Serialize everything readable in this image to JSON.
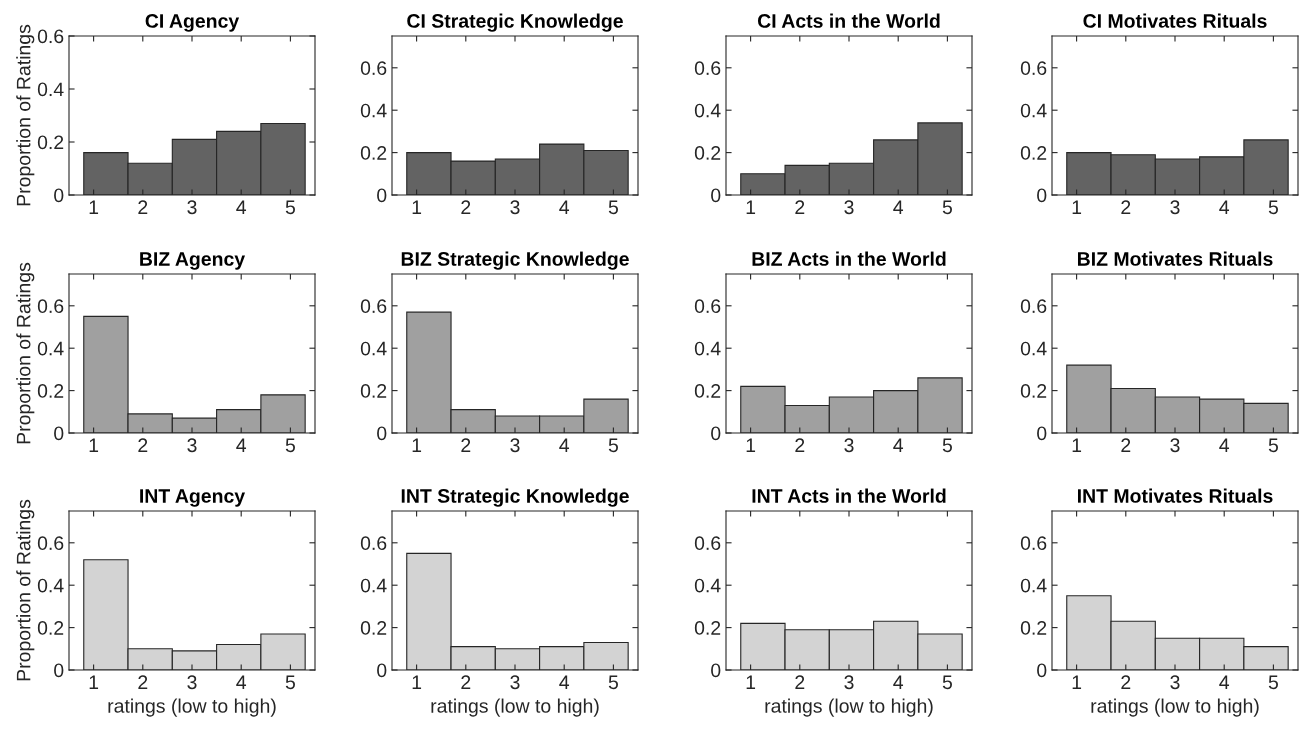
{
  "chart_data": [
    {
      "type": "histogram",
      "title": "CI Agency",
      "ylabel": "Proportion of Ratings",
      "bins": [
        0.8,
        1.7,
        2.6,
        3.5,
        4.4,
        5.3
      ],
      "values": [
        0.16,
        0.12,
        0.21,
        0.24,
        0.27
      ],
      "color": "#636363",
      "xlim": [
        0.5,
        5.5
      ],
      "xticks": [
        1,
        2,
        3,
        4,
        5
      ],
      "ylim": [
        0,
        0.6
      ],
      "yticks": [
        0,
        0.2,
        0.4,
        0.6
      ],
      "grid": false
    },
    {
      "type": "histogram",
      "title": "CI Strategic Knowledge",
      "bins": [
        0.8,
        1.7,
        2.6,
        3.5,
        4.4,
        5.3
      ],
      "values": [
        0.2,
        0.16,
        0.17,
        0.24,
        0.21
      ],
      "color": "#636363",
      "xlim": [
        0.5,
        5.5
      ],
      "xticks": [
        1,
        2,
        3,
        4,
        5
      ],
      "ylim": [
        0,
        0.75
      ],
      "yticks": [
        0,
        0.2,
        0.4,
        0.6
      ],
      "grid": false
    },
    {
      "type": "histogram",
      "title": "CI Acts in the World",
      "bins": [
        0.8,
        1.7,
        2.6,
        3.5,
        4.4,
        5.3
      ],
      "values": [
        0.1,
        0.14,
        0.15,
        0.26,
        0.34
      ],
      "color": "#636363",
      "xlim": [
        0.5,
        5.5
      ],
      "xticks": [
        1,
        2,
        3,
        4,
        5
      ],
      "ylim": [
        0,
        0.75
      ],
      "yticks": [
        0,
        0.2,
        0.4,
        0.6
      ],
      "grid": false
    },
    {
      "type": "histogram",
      "title": "CI Motivates Rituals",
      "bins": [
        0.8,
        1.7,
        2.6,
        3.5,
        4.4,
        5.3
      ],
      "values": [
        0.2,
        0.19,
        0.17,
        0.18,
        0.26
      ],
      "color": "#636363",
      "xlim": [
        0.5,
        5.5
      ],
      "xticks": [
        1,
        2,
        3,
        4,
        5
      ],
      "ylim": [
        0,
        0.75
      ],
      "yticks": [
        0,
        0.2,
        0.4,
        0.6
      ],
      "grid": false
    },
    {
      "type": "histogram",
      "title": "BIZ Agency",
      "ylabel": "Proportion of Ratings",
      "bins": [
        0.8,
        1.7,
        2.6,
        3.5,
        4.4,
        5.3
      ],
      "values": [
        0.55,
        0.09,
        0.07,
        0.11,
        0.18
      ],
      "color": "#a0a0a0",
      "xlim": [
        0.5,
        5.5
      ],
      "xticks": [
        1,
        2,
        3,
        4,
        5
      ],
      "ylim": [
        0,
        0.75
      ],
      "yticks": [
        0,
        0.2,
        0.4,
        0.6
      ],
      "grid": false
    },
    {
      "type": "histogram",
      "title": "BIZ Strategic Knowledge",
      "bins": [
        0.8,
        1.7,
        2.6,
        3.5,
        4.4,
        5.3
      ],
      "values": [
        0.57,
        0.11,
        0.08,
        0.08,
        0.16
      ],
      "color": "#a0a0a0",
      "xlim": [
        0.5,
        5.5
      ],
      "xticks": [
        1,
        2,
        3,
        4,
        5
      ],
      "ylim": [
        0,
        0.75
      ],
      "yticks": [
        0,
        0.2,
        0.4,
        0.6
      ],
      "grid": false
    },
    {
      "type": "histogram",
      "title": "BIZ Acts in the World",
      "bins": [
        0.8,
        1.7,
        2.6,
        3.5,
        4.4,
        5.3
      ],
      "values": [
        0.22,
        0.13,
        0.17,
        0.2,
        0.26
      ],
      "color": "#a0a0a0",
      "xlim": [
        0.5,
        5.5
      ],
      "xticks": [
        1,
        2,
        3,
        4,
        5
      ],
      "ylim": [
        0,
        0.75
      ],
      "yticks": [
        0,
        0.2,
        0.4,
        0.6
      ],
      "grid": false
    },
    {
      "type": "histogram",
      "title": "BIZ Motivates Rituals",
      "bins": [
        0.8,
        1.7,
        2.6,
        3.5,
        4.4,
        5.3
      ],
      "values": [
        0.32,
        0.21,
        0.17,
        0.16,
        0.14
      ],
      "color": "#a0a0a0",
      "xlim": [
        0.5,
        5.5
      ],
      "xticks": [
        1,
        2,
        3,
        4,
        5
      ],
      "ylim": [
        0,
        0.75
      ],
      "yticks": [
        0,
        0.2,
        0.4,
        0.6
      ],
      "grid": false
    },
    {
      "type": "histogram",
      "title": "INT Agency",
      "ylabel": "Proportion of Ratings",
      "xlabel": "ratings (low to high)",
      "bins": [
        0.8,
        1.7,
        2.6,
        3.5,
        4.4,
        5.3
      ],
      "values": [
        0.52,
        0.1,
        0.09,
        0.12,
        0.17
      ],
      "color": "#d3d3d3",
      "xlim": [
        0.5,
        5.5
      ],
      "xticks": [
        1,
        2,
        3,
        4,
        5
      ],
      "ylim": [
        0,
        0.75
      ],
      "yticks": [
        0,
        0.2,
        0.4,
        0.6
      ],
      "grid": false
    },
    {
      "type": "histogram",
      "title": "INT Strategic Knowledge",
      "xlabel": "ratings (low to high)",
      "bins": [
        0.8,
        1.7,
        2.6,
        3.5,
        4.4,
        5.3
      ],
      "values": [
        0.55,
        0.11,
        0.1,
        0.11,
        0.13
      ],
      "color": "#d3d3d3",
      "xlim": [
        0.5,
        5.5
      ],
      "xticks": [
        1,
        2,
        3,
        4,
        5
      ],
      "ylim": [
        0,
        0.75
      ],
      "yticks": [
        0,
        0.2,
        0.4,
        0.6
      ],
      "grid": false
    },
    {
      "type": "histogram",
      "title": "INT Acts in the World",
      "xlabel": "ratings (low to high)",
      "bins": [
        0.8,
        1.7,
        2.6,
        3.5,
        4.4,
        5.3
      ],
      "values": [
        0.22,
        0.19,
        0.19,
        0.23,
        0.17
      ],
      "color": "#d3d3d3",
      "xlim": [
        0.5,
        5.5
      ],
      "xticks": [
        1,
        2,
        3,
        4,
        5
      ],
      "ylim": [
        0,
        0.75
      ],
      "yticks": [
        0,
        0.2,
        0.4,
        0.6
      ],
      "grid": false
    },
    {
      "type": "histogram",
      "title": "INT Motivates Rituals",
      "xlabel": "ratings (low to high)",
      "bins": [
        0.8,
        1.7,
        2.6,
        3.5,
        4.4,
        5.3
      ],
      "values": [
        0.35,
        0.23,
        0.15,
        0.15,
        0.11
      ],
      "color": "#d3d3d3",
      "xlim": [
        0.5,
        5.5
      ],
      "xticks": [
        1,
        2,
        3,
        4,
        5
      ],
      "ylim": [
        0,
        0.75
      ],
      "yticks": [
        0,
        0.2,
        0.4,
        0.6
      ],
      "grid": false
    }
  ]
}
